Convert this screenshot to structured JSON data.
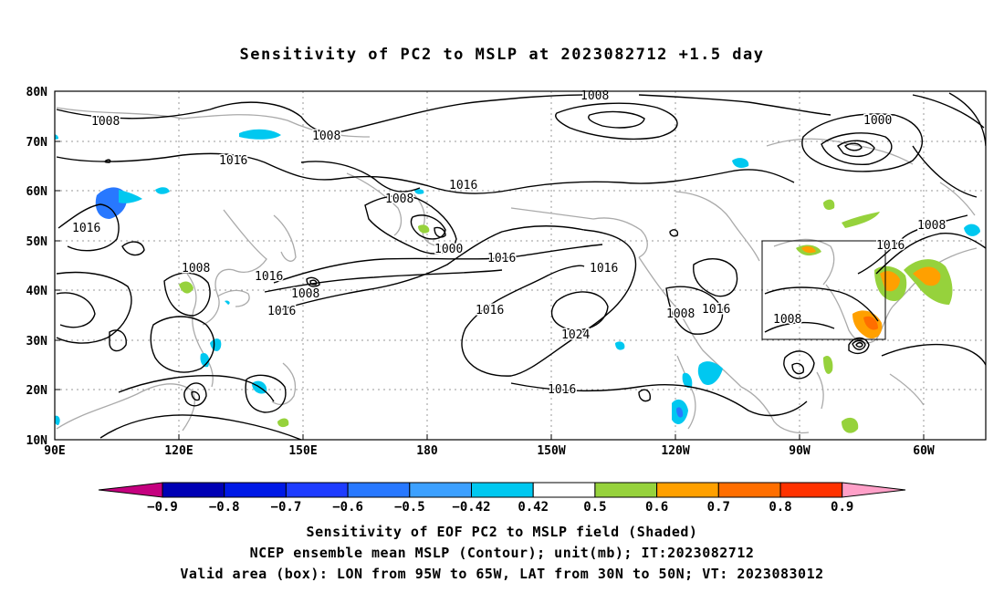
{
  "title": "Sensitivity of PC2 to MSLP at 2023082712 +1.5 day",
  "map": {
    "lat_labels": [
      "80N",
      "70N",
      "60N",
      "50N",
      "40N",
      "30N",
      "20N",
      "10N"
    ],
    "lon_labels": [
      "90E",
      "120E",
      "150E",
      "180",
      "150W",
      "120W",
      "90W",
      "60W"
    ],
    "contour_labels": [
      {
        "text": "1008",
        "name": "isobar-label-1008-top"
      },
      {
        "text": "1008",
        "name": "isobar-label-1008-west"
      },
      {
        "text": "1008",
        "name": "isobar-label-1008-arctic"
      },
      {
        "text": "1000",
        "name": "isobar-label-1000-arctic-low"
      },
      {
        "text": "1016",
        "name": "isobar-label-1016-siberia"
      },
      {
        "text": "1016",
        "name": "isobar-label-1016-arctic"
      },
      {
        "text": "1016",
        "name": "isobar-label-1016-asia"
      },
      {
        "text": "1008",
        "name": "isobar-label-1008-bering"
      },
      {
        "text": "1000",
        "name": "isobar-label-1000-bering-low"
      },
      {
        "text": "1016",
        "name": "isobar-label-1016-central-pacific"
      },
      {
        "text": "1016",
        "name": "isobar-label-1016-east-pacific"
      },
      {
        "text": "1008",
        "name": "isobar-label-1008-japan"
      },
      {
        "text": "1016",
        "name": "isobar-label-1016-kamchatka"
      },
      {
        "text": "1008",
        "name": "isobar-label-1008-kuril"
      },
      {
        "text": "1016",
        "name": "isobar-label-1016-west-pacific"
      },
      {
        "text": "1016",
        "name": "isobar-label-1016-pacific-high"
      },
      {
        "text": "1024",
        "name": "isobar-label-1024-high"
      },
      {
        "text": "1016",
        "name": "isobar-label-1016-subtropics"
      },
      {
        "text": "1008",
        "name": "isobar-label-1008-mexico"
      },
      {
        "text": "1016",
        "name": "isobar-label-1016-rockies"
      },
      {
        "text": "1008",
        "name": "isobar-label-1008-gulf"
      },
      {
        "text": "1016",
        "name": "isobar-label-1016-canada"
      },
      {
        "text": "1008",
        "name": "isobar-label-1008-atlantic"
      }
    ]
  },
  "colorbar": {
    "levels": [
      "-0.9",
      "-0.8",
      "-0.7",
      "-0.6",
      "-0.5",
      "-0.42",
      "0.42",
      "0.5",
      "0.6",
      "0.7",
      "0.8",
      "0.9"
    ],
    "colors": [
      "#c5007f",
      "#0000b4",
      "#0019e6",
      "#1e3cff",
      "#2878ff",
      "#3ca0ff",
      "#00c8f0",
      "#ffffff",
      "#96d23c",
      "#ffa000",
      "#ff6e00",
      "#ff3200",
      "#ff0000",
      "#ffa0c8"
    ]
  },
  "captions": [
    "Sensitivity of EOF PC2 to MSLP field (Shaded)",
    "NCEP ensemble mean MSLP (Contour); unit(mb); IT:2023082712",
    "Valid area (box): LON from 95W to 65W, LAT from 30N to 50N; VT: 2023083012"
  ]
}
